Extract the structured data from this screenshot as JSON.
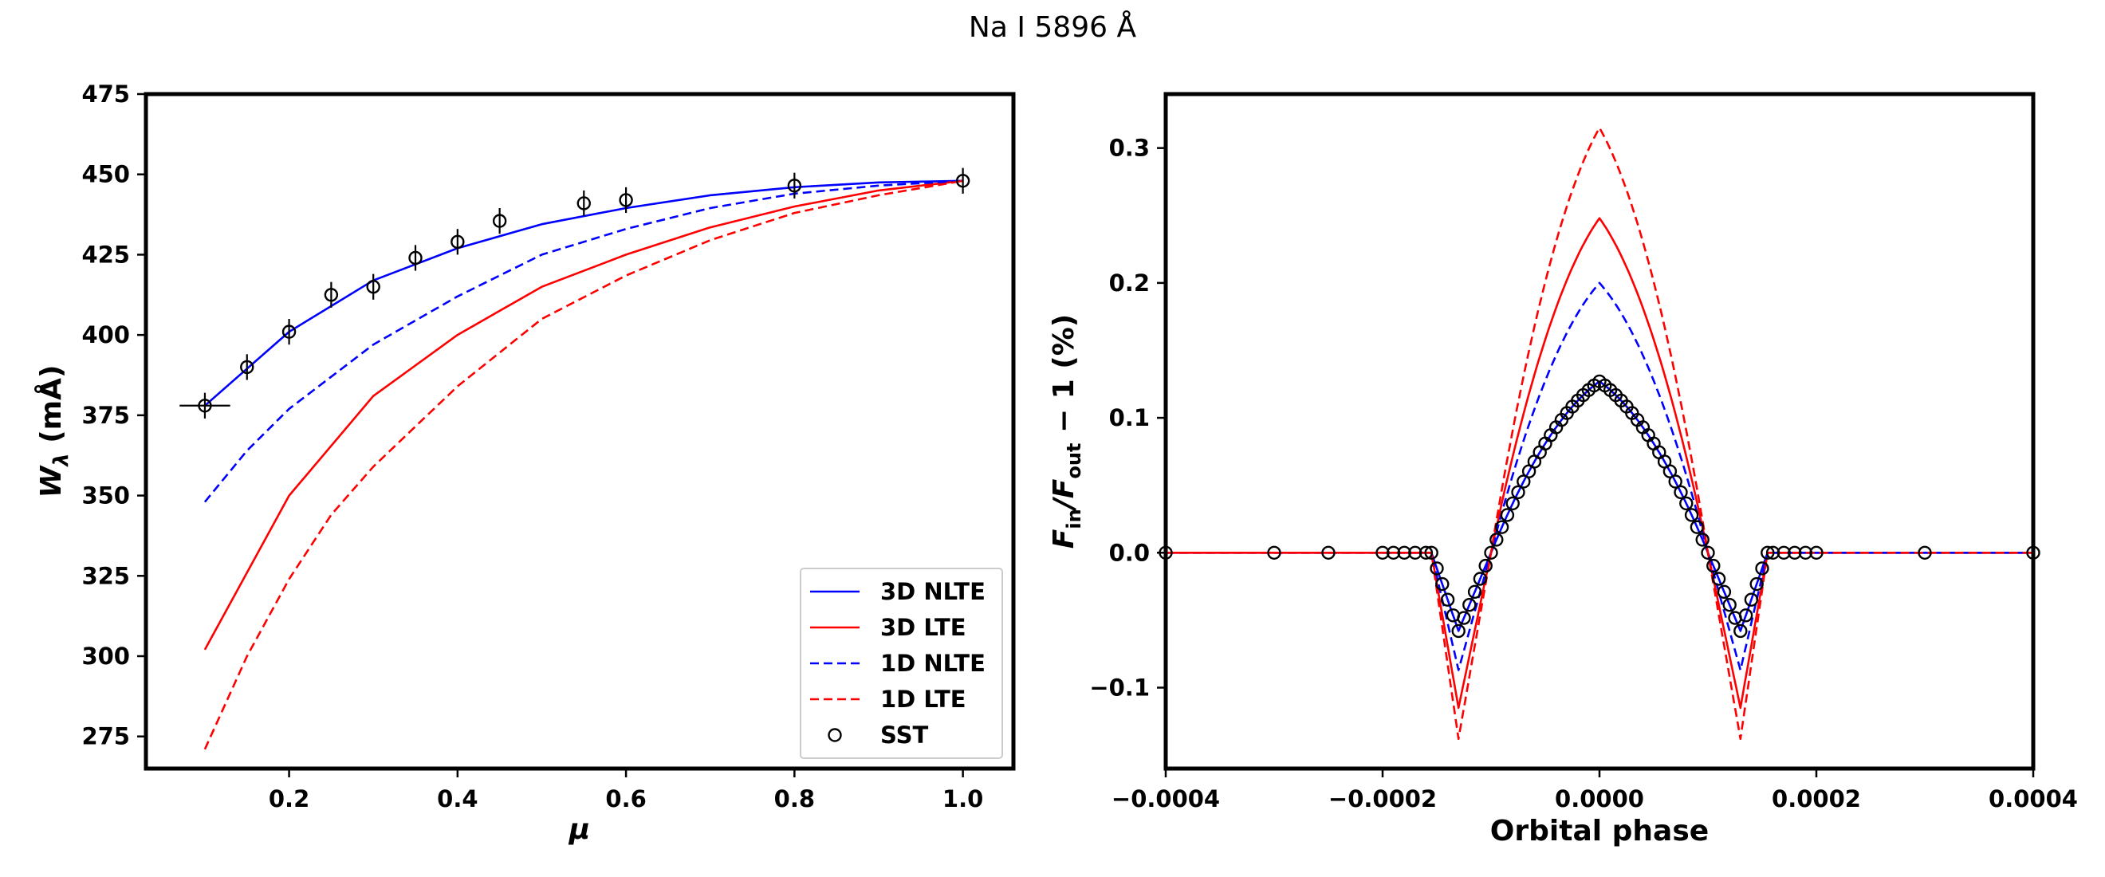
{
  "figure": {
    "title": "Na I 5896 Å"
  },
  "colors": {
    "blue": "#0000ff",
    "red": "#ff0000",
    "black": "#000000"
  },
  "chart_data": [
    {
      "type": "line",
      "id": "left",
      "xlabel": "μ",
      "ylabel_main": "W",
      "ylabel_sub": "λ",
      "ylabel_rest": " (mÅ)",
      "xlim": [
        0.03,
        1.06
      ],
      "ylim": [
        265,
        475
      ],
      "xticks": [
        0.2,
        0.4,
        0.6,
        0.8,
        1.0
      ],
      "xtick_labels": [
        "0.2",
        "0.4",
        "0.6",
        "0.8",
        "1.0"
      ],
      "yticks": [
        275,
        300,
        325,
        350,
        375,
        400,
        425,
        450,
        475
      ],
      "ytick_labels": [
        "275",
        "300",
        "325",
        "350",
        "375",
        "400",
        "425",
        "450",
        "475"
      ],
      "legend_position": "lower-right",
      "series": [
        {
          "name": "3D NLTE",
          "color": "blue",
          "dash": "solid",
          "x": [
            0.1,
            0.2,
            0.3,
            0.4,
            0.5,
            0.6,
            0.7,
            0.8,
            0.9,
            1.0
          ],
          "y": [
            378,
            401,
            417,
            427,
            434.5,
            439.5,
            443.5,
            446,
            447.5,
            448
          ]
        },
        {
          "name": "3D LTE",
          "color": "red",
          "dash": "solid",
          "x": [
            0.1,
            0.2,
            0.3,
            0.4,
            0.5,
            0.6,
            0.7,
            0.8,
            0.9,
            1.0
          ],
          "y": [
            302,
            350,
            381,
            400,
            415,
            425,
            433.5,
            440,
            445,
            448
          ]
        },
        {
          "name": "1D NLTE",
          "color": "blue",
          "dash": "dashed",
          "x": [
            0.1,
            0.15,
            0.2,
            0.3,
            0.4,
            0.5,
            0.6,
            0.7,
            0.8,
            0.9,
            1.0
          ],
          "y": [
            348,
            364,
            377,
            397,
            412,
            425,
            433,
            439.5,
            444,
            446.5,
            448
          ]
        },
        {
          "name": "1D LTE",
          "color": "red",
          "dash": "dashed",
          "x": [
            0.1,
            0.15,
            0.2,
            0.25,
            0.3,
            0.4,
            0.5,
            0.6,
            0.7,
            0.8,
            0.9,
            1.0
          ],
          "y": [
            271,
            300,
            324,
            344,
            359,
            384,
            405,
            418.5,
            429.5,
            438,
            443.5,
            448
          ]
        },
        {
          "name": "SST",
          "color": "black",
          "dash": "markers",
          "x": [
            0.1,
            0.15,
            0.2,
            0.25,
            0.3,
            0.35,
            0.4,
            0.45,
            0.55,
            0.6,
            0.8,
            1.0
          ],
          "y": [
            378,
            390,
            401,
            412.5,
            415,
            424,
            429,
            435.5,
            441,
            442,
            446.5,
            448
          ],
          "yerr": 4,
          "xerr_first": 0.03
        }
      ]
    },
    {
      "type": "line",
      "id": "right",
      "xlabel": "Orbital phase",
      "ylabel_main": "F",
      "ylabel_sub": "in",
      "ylabel_mid": "/F",
      "ylabel_sub2": "out",
      "ylabel_rest": " − 1 (%)",
      "xlim": [
        -0.0004,
        0.0004
      ],
      "ylim": [
        -0.16,
        0.34
      ],
      "xticks": [
        -0.0004,
        -0.0002,
        0.0,
        0.0002,
        0.0004
      ],
      "xtick_labels": [
        "−0.0004",
        "−0.0002",
        "0.0000",
        "0.0002",
        "0.0004"
      ],
      "yticks": [
        -0.1,
        0.0,
        0.1,
        0.2,
        0.3
      ],
      "ytick_labels": [
        "−0.1",
        "0.0",
        "0.1",
        "0.2",
        "0.3"
      ],
      "transit": {
        "t1": 0.000155,
        "t2": 0.00013,
        "t3": 0.0001
      },
      "series": [
        {
          "name": "3D NLTE",
          "color": "blue",
          "dash": "solid",
          "peak": 0.127,
          "trough": -0.058
        },
        {
          "name": "3D LTE",
          "color": "red",
          "dash": "solid",
          "peak": 0.248,
          "trough": -0.115
        },
        {
          "name": "1D NLTE",
          "color": "blue",
          "dash": "dashed",
          "peak": 0.2,
          "trough": -0.087
        },
        {
          "name": "1D LTE",
          "color": "red",
          "dash": "dashed",
          "peak": 0.315,
          "trough": -0.138
        },
        {
          "name": "SST",
          "color": "black",
          "dash": "markers",
          "peak": 0.127,
          "trough": -0.058,
          "marker_x_outside": [
            -0.0004,
            -0.0003,
            -0.00025,
            -0.0002,
            -0.00019,
            -0.00018,
            -0.00017,
            -0.00016,
            0.00016,
            0.00017,
            0.00018,
            0.00019,
            0.0002,
            0.0003,
            0.0004
          ],
          "marker_step_inside": 5e-06
        }
      ]
    }
  ]
}
